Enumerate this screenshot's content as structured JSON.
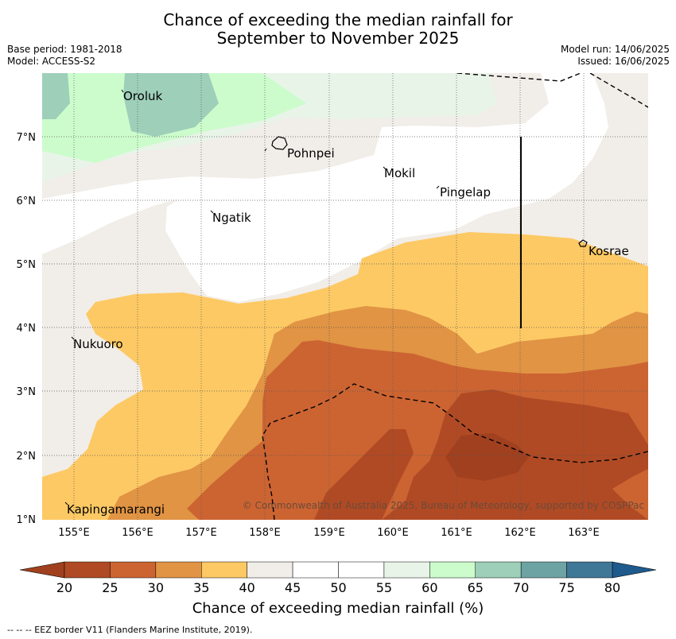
{
  "title_line1": "Chance of exceeding the median rainfall for",
  "title_line2": "September to November 2025",
  "meta_left": [
    "Base period: 1981-2018",
    "Model: ACCESS-S2"
  ],
  "meta_right": [
    "Model run: 14/06/2025",
    "Issued: 16/06/2025"
  ],
  "places": [
    "Oroluk",
    "Pohnpei",
    "Mokil",
    "Pingelap",
    "Ngatik",
    "Kosrae",
    "Nukuoro",
    "Kapingamarangi"
  ],
  "lat_labels": [
    "7°N",
    "6°N",
    "5°N",
    "4°N",
    "3°N",
    "2°N",
    "1°N"
  ],
  "lon_labels": [
    "155°E",
    "156°E",
    "157°E",
    "158°E",
    "159°E",
    "160°E",
    "161°E",
    "162°E",
    "163°E"
  ],
  "copyright": "© Commonwealth of Australia 2025, Bureau of Meteorology, supported by COSPPac",
  "colorbar": {
    "ticks": [
      "20",
      "25",
      "30",
      "35",
      "40",
      "45",
      "50",
      "55",
      "60",
      "65",
      "70",
      "75",
      "80"
    ],
    "colors": [
      "#b04a24",
      "#cc6432",
      "#e09444",
      "#fdc964",
      "#f1ede8",
      "#ffffff",
      "#ffffff",
      "#e9f4e9",
      "#ccfccc",
      "#9ecfb9",
      "#6ea3a3",
      "#3f7797"
    ],
    "under_color": "#a0401f",
    "over_color": "#1f5a8c",
    "label": "Chance of exceeding median rainfall (%)"
  },
  "footnote": "--  --  -- EEZ border V11 (Flanders Marine Institute, 2019)."
}
